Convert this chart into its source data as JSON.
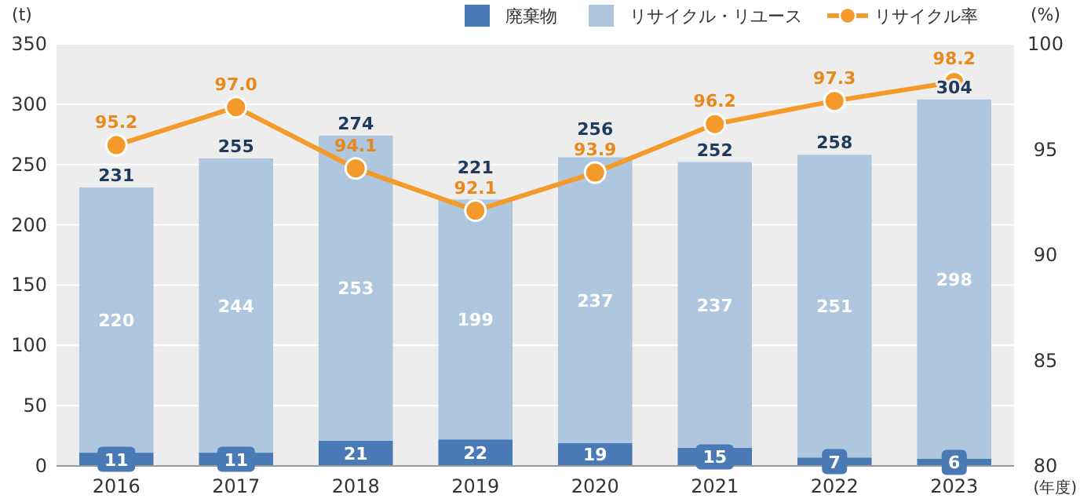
{
  "chart_data": {
    "type": "bar",
    "stacked": true,
    "categories": [
      "2016",
      "2017",
      "2018",
      "2019",
      "2020",
      "2021",
      "2022",
      "2023"
    ],
    "ylabel": "(t)",
    "y2label": "(%)",
    "xlabel": "(年度)",
    "ylim": [
      0,
      350
    ],
    "yticks": [
      0,
      50,
      100,
      150,
      200,
      250,
      300,
      350
    ],
    "y2lim": [
      80,
      100
    ],
    "y2ticks": [
      80,
      85,
      90,
      95,
      100
    ],
    "grid": "y",
    "legend": "top right",
    "marker": "circle",
    "line_style": "solid",
    "series": [
      {
        "name": "廃棄物",
        "color": "#4a7ab5",
        "values": [
          11,
          11,
          21,
          22,
          19,
          15,
          7,
          6
        ],
        "value_labels": [
          "11",
          "11",
          "21",
          "22",
          "19",
          "15",
          "7",
          "6"
        ]
      },
      {
        "name": "リサイクル・リユース",
        "color": "#aec6de",
        "values": [
          220,
          244,
          253,
          199,
          237,
          237,
          251,
          298
        ],
        "value_labels": [
          "220",
          "244",
          "253",
          "199",
          "237",
          "237",
          "251",
          "298"
        ]
      },
      {
        "name": "リサイクル率",
        "type": "line",
        "axis": "y2",
        "color": "#f39a2b",
        "values": [
          95.2,
          97.0,
          94.1,
          92.1,
          93.9,
          96.2,
          97.3,
          98.2
        ],
        "value_labels": [
          "95.2",
          "97.0",
          "94.1",
          "92.1",
          "93.9",
          "96.2",
          "97.3",
          "98.2"
        ]
      }
    ],
    "totals": [
      "231",
      "255",
      "274",
      "221",
      "256",
      "252",
      "258",
      "304"
    ]
  }
}
